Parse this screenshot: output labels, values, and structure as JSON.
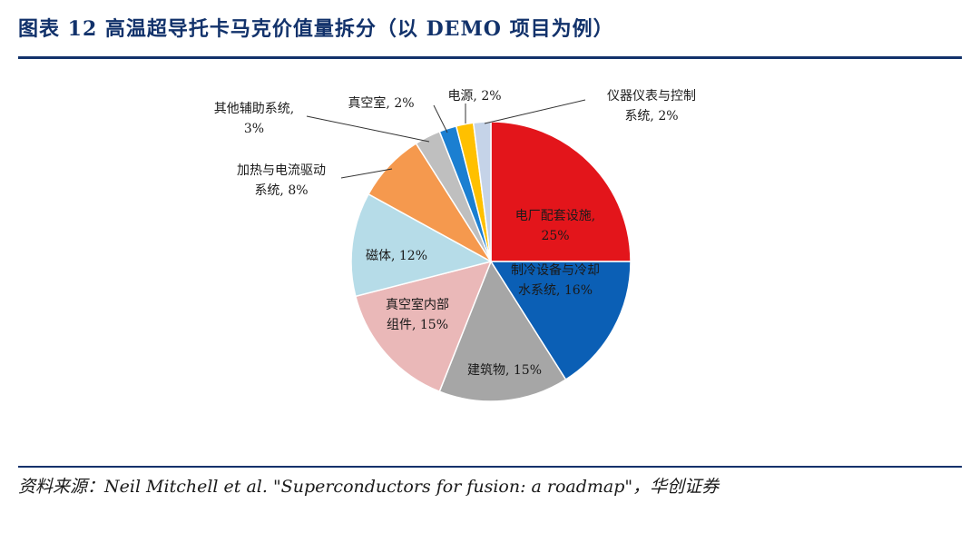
{
  "header": {
    "title": "图表 12   高温超导托卡马克价值量拆分（以 DEMO 项目为例）"
  },
  "footer": {
    "source": "资料来源：Neil Mitchell et al. \"Superconductors for fusion: a roadmap\"，华创证券"
  },
  "chart_data": {
    "type": "pie",
    "title": "",
    "slices": [
      {
        "name": "电厂配套设施",
        "value": 25,
        "color": "#e3151b",
        "label_lines": [
          "电厂配套设施,",
          "25%"
        ]
      },
      {
        "name": "制冷设备与冷却水系统",
        "value": 16,
        "color": "#0b5fb5",
        "label_lines": [
          "制冷设备与冷却",
          "水系统, 16%"
        ]
      },
      {
        "name": "建筑物",
        "value": 15,
        "color": "#a6a6a6",
        "label_lines": [
          "建筑物, 15%"
        ]
      },
      {
        "name": "真空室内部组件",
        "value": 15,
        "color": "#eab8b8",
        "label_lines": [
          "真空室内部",
          "组件, 15%"
        ]
      },
      {
        "name": "磁体",
        "value": 12,
        "color": "#b6dce8",
        "label_lines": [
          "磁体, 12%"
        ]
      },
      {
        "name": "加热与电流驱动系统",
        "value": 8,
        "color": "#f5994e",
        "label_lines": [
          "加热与电流驱动",
          "系统, 8%"
        ]
      },
      {
        "name": "其他辅助系统",
        "value": 3,
        "color": "#bfbfbf",
        "label_lines": [
          "其他辅助系统,",
          "3%"
        ]
      },
      {
        "name": "真空室",
        "value": 2,
        "color": "#1b7fd1",
        "label_lines": [
          "真空室, 2%"
        ]
      },
      {
        "name": "电源",
        "value": 2,
        "color": "#ffc000",
        "label_lines": [
          "电源, 2%"
        ]
      },
      {
        "name": "仪器仪表与控制系统",
        "value": 2,
        "color": "#c5d3e8",
        "label_lines": [
          "仪器仪表与控制",
          "系统, 2%"
        ]
      }
    ]
  }
}
